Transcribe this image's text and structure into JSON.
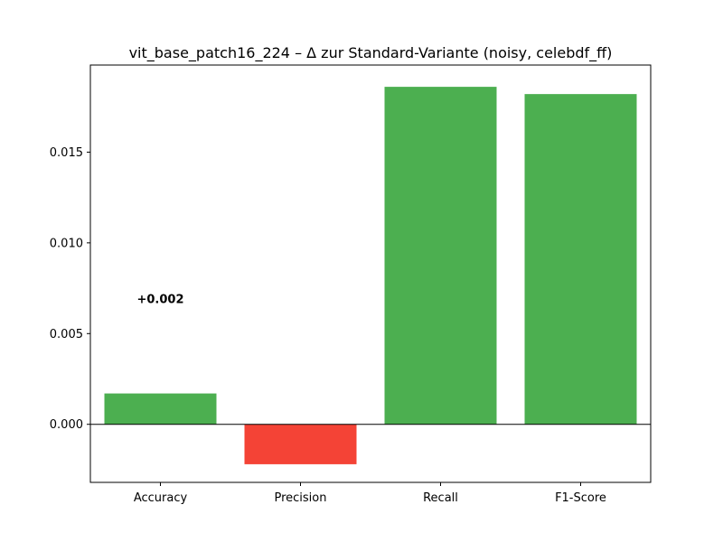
{
  "chart_data": {
    "type": "bar",
    "title": "vit_base_patch16_224 – Δ zur Standard-Variante (noisy, celebdf_ff)",
    "xlabel": "",
    "ylabel": "",
    "categories": [
      "Accuracy",
      "Precision",
      "Recall",
      "F1-Score"
    ],
    "values": [
      0.0017,
      -0.0022,
      0.0186,
      0.0182
    ],
    "bar_colors": [
      "#4caf50",
      "#f44336",
      "#4caf50",
      "#4caf50"
    ],
    "ylim": [
      -0.0032,
      0.0198
    ],
    "yticks": [
      0.0,
      0.005,
      0.01,
      0.015
    ],
    "ytick_labels": [
      "0.000",
      "0.005",
      "0.010",
      "0.015"
    ],
    "zero_line": true,
    "grid": false,
    "annotations": [
      {
        "category": "Accuracy",
        "text": "+0.002",
        "y": 0.0069
      }
    ]
  }
}
